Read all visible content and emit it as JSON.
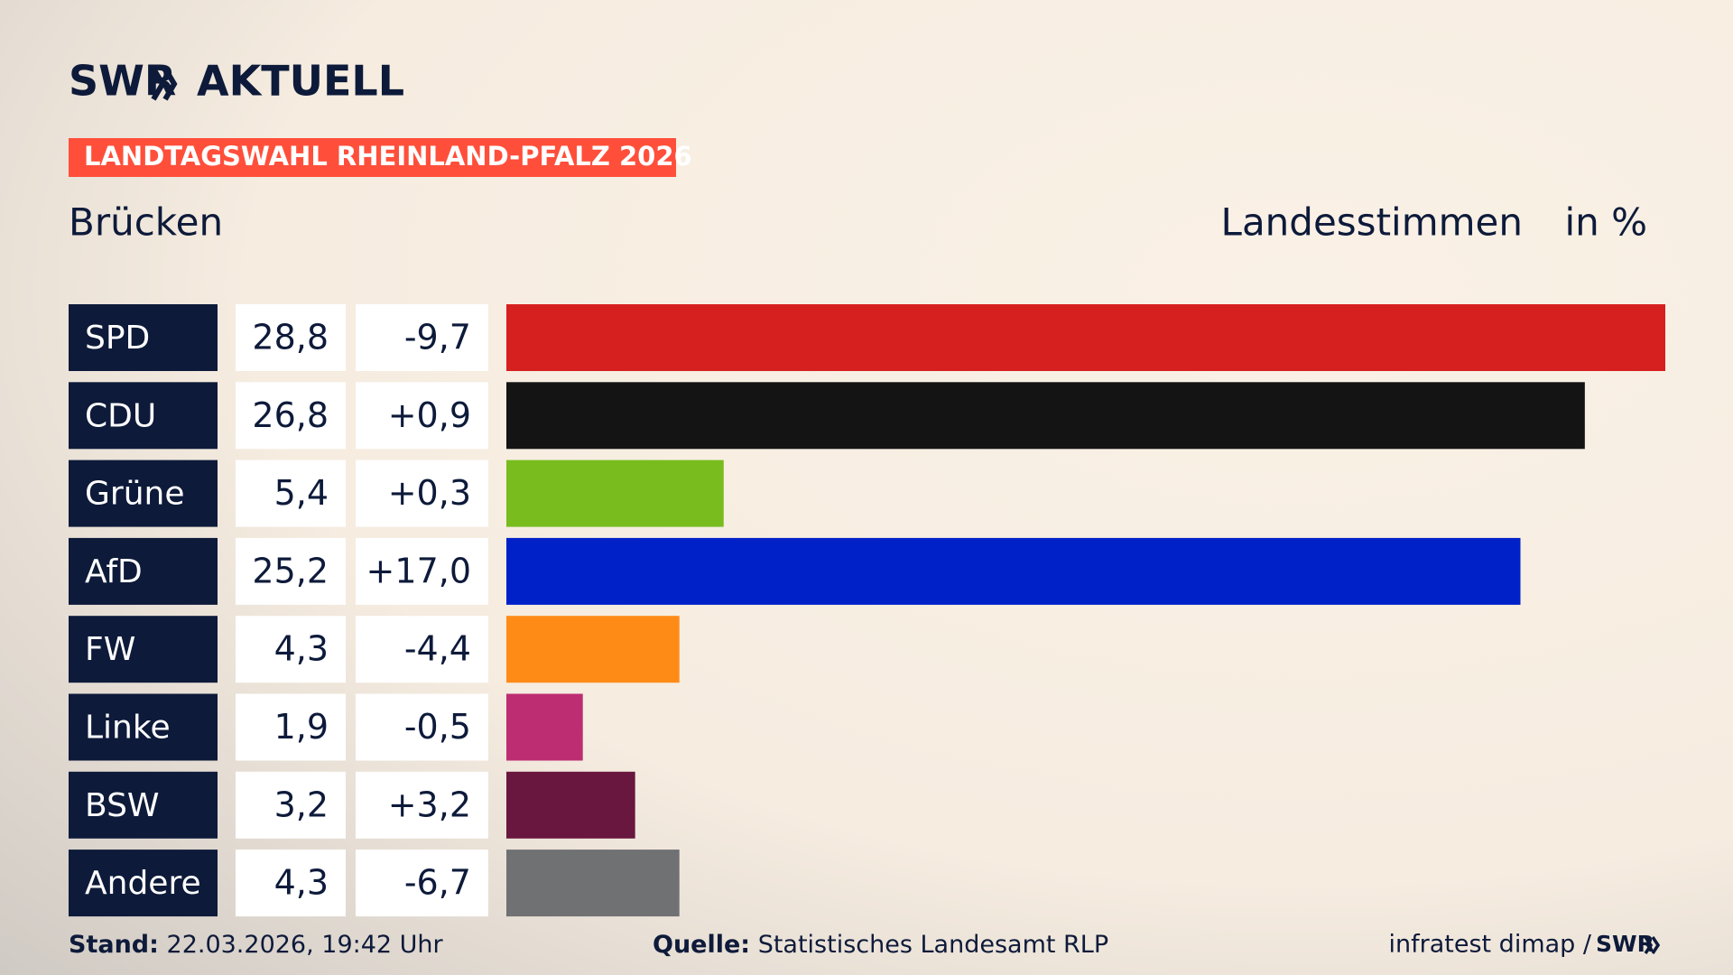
{
  "header": {
    "logo": "SWR",
    "logo_suffix": "AKTUELL",
    "banner": "LANDTAGSWAHL RHEINLAND-PFALZ 2026"
  },
  "chart_data": {
    "type": "bar",
    "title": "Brücken",
    "subtitle": "Landesstimmen",
    "unit": "in %",
    "categories": [
      "SPD",
      "CDU",
      "Grüne",
      "AfD",
      "FW",
      "Linke",
      "BSW",
      "Andere"
    ],
    "values": [
      28.8,
      26.8,
      5.4,
      25.2,
      4.3,
      1.9,
      3.2,
      4.3
    ],
    "value_labels": [
      "28,8",
      "26,8",
      "5,4",
      "25,2",
      "4,3",
      "1,9",
      "3,2",
      "4,3"
    ],
    "changes": [
      "-9,7",
      "+0,9",
      "+0,3",
      "+17,0",
      "-4,4",
      "-0,5",
      "+3,2",
      "-6,7"
    ],
    "colors": [
      "#d61f1f",
      "#141414",
      "#78bc1e",
      "#0021c8",
      "#ff8b17",
      "#bd2d72",
      "#69173f",
      "#707173"
    ]
  },
  "footer": {
    "stand_label": "Stand:",
    "stand": "22.03.2026, 19:42 Uhr",
    "source_label": "Quelle:",
    "source": "Statistisches Landesamt RLP",
    "credit": "infratest dimap /",
    "credit_logo": "SWR"
  }
}
